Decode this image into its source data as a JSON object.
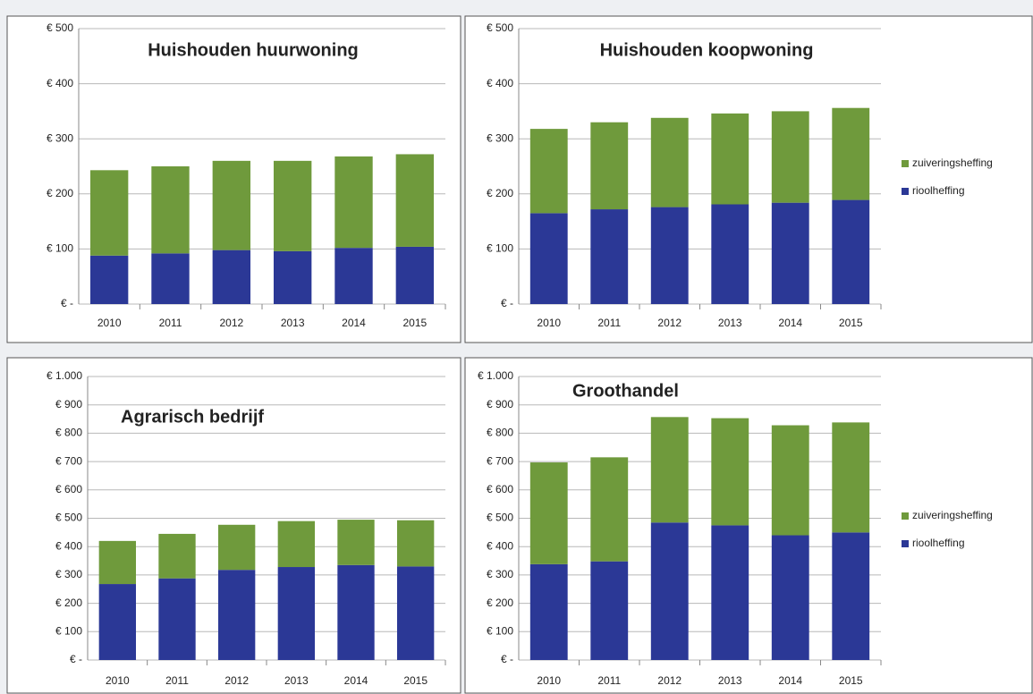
{
  "chart_data": [
    {
      "type": "bar",
      "stacked": true,
      "title": "Huishouden huurwoning",
      "categories": [
        "2010",
        "2011",
        "2012",
        "2013",
        "2014",
        "2015"
      ],
      "series": [
        {
          "color": "#2b3896",
          "values": [
            88,
            92,
            98,
            96,
            102,
            104
          ]
        },
        {
          "color": "#6f9a3c",
          "values": [
            155,
            158,
            162,
            164,
            166,
            168
          ]
        }
      ],
      "ylim": [
        0,
        500
      ],
      "yticks": [
        {
          "value": 0,
          "label": "€ -"
        },
        {
          "value": 100,
          "label": "€ 100"
        },
        {
          "value": 200,
          "label": "€ 200"
        },
        {
          "value": 300,
          "label": "€ 300"
        },
        {
          "value": 400,
          "label": "€ 400"
        },
        {
          "value": 500,
          "label": "€ 500"
        }
      ],
      "grid": true
    },
    {
      "type": "bar",
      "stacked": true,
      "title": "Huishouden koopwoning",
      "categories": [
        "2010",
        "2011",
        "2012",
        "2013",
        "2014",
        "2015"
      ],
      "series": [
        {
          "name": "rioolheffing",
          "color": "#2b3896",
          "values": [
            165,
            172,
            176,
            181,
            184,
            189
          ]
        },
        {
          "name": "zuiveringsheffing",
          "color": "#6f9a3c",
          "values": [
            153,
            158,
            162,
            165,
            166,
            167
          ]
        }
      ],
      "ylim": [
        0,
        500
      ],
      "yticks": [
        {
          "value": 0,
          "label": "€ -"
        },
        {
          "value": 100,
          "label": "€ 100"
        },
        {
          "value": 200,
          "label": "€ 200"
        },
        {
          "value": 300,
          "label": "€ 300"
        },
        {
          "value": 400,
          "label": "€ 400"
        },
        {
          "value": 500,
          "label": "€ 500"
        }
      ],
      "grid": true,
      "legend": "right"
    },
    {
      "type": "bar",
      "stacked": true,
      "title": "Agrarisch bedrijf",
      "categories": [
        "2010",
        "2011",
        "2012",
        "2013",
        "2014",
        "2015"
      ],
      "series": [
        {
          "color": "#2b3896",
          "values": [
            268,
            288,
            318,
            328,
            335,
            330
          ]
        },
        {
          "color": "#6f9a3c",
          "values": [
            152,
            157,
            159,
            162,
            160,
            163
          ]
        }
      ],
      "ylim": [
        0,
        1000
      ],
      "yticks": [
        {
          "value": 0,
          "label": "€ -"
        },
        {
          "value": 100,
          "label": "€ 100"
        },
        {
          "value": 200,
          "label": "€ 200"
        },
        {
          "value": 300,
          "label": "€ 300"
        },
        {
          "value": 400,
          "label": "€ 400"
        },
        {
          "value": 500,
          "label": "€ 500"
        },
        {
          "value": 600,
          "label": "€ 600"
        },
        {
          "value": 700,
          "label": "€ 700"
        },
        {
          "value": 800,
          "label": "€ 800"
        },
        {
          "value": 900,
          "label": "€ 900"
        },
        {
          "value": 1000,
          "label": "€ 1.000"
        }
      ],
      "grid": true
    },
    {
      "type": "bar",
      "stacked": true,
      "title": "Groothandel",
      "categories": [
        "2010",
        "2011",
        "2012",
        "2013",
        "2014",
        "2015"
      ],
      "series": [
        {
          "name": "rioolheffing",
          "color": "#2b3896",
          "values": [
            338,
            348,
            485,
            475,
            440,
            450
          ]
        },
        {
          "name": "zuiveringsheffing",
          "color": "#6f9a3c",
          "values": [
            359,
            367,
            372,
            378,
            388,
            388
          ]
        }
      ],
      "ylim": [
        0,
        1000
      ],
      "yticks": [
        {
          "value": 0,
          "label": "€ -"
        },
        {
          "value": 100,
          "label": "€ 100"
        },
        {
          "value": 200,
          "label": "€ 200"
        },
        {
          "value": 300,
          "label": "€ 300"
        },
        {
          "value": 400,
          "label": "€ 400"
        },
        {
          "value": 500,
          "label": "€ 500"
        },
        {
          "value": 600,
          "label": "€ 600"
        },
        {
          "value": 700,
          "label": "€ 700"
        },
        {
          "value": 800,
          "label": "€ 800"
        },
        {
          "value": 900,
          "label": "€ 900"
        },
        {
          "value": 1000,
          "label": "€ 1.000"
        }
      ],
      "grid": true,
      "legend": "right"
    }
  ]
}
